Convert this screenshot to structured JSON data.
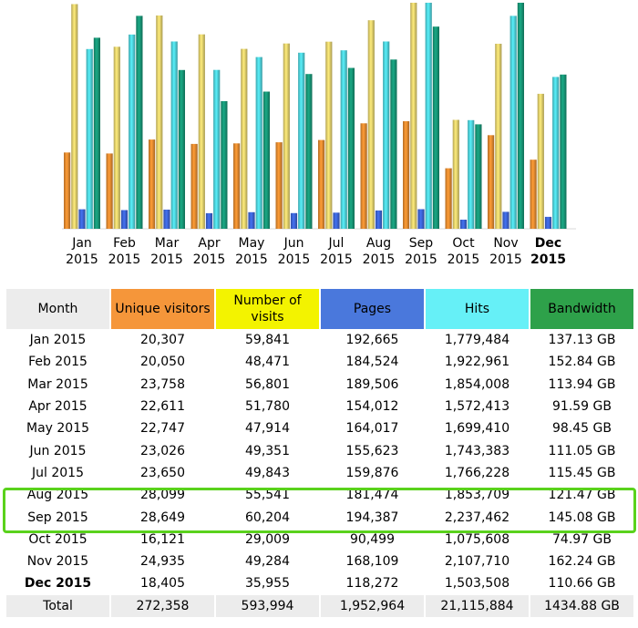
{
  "chart_data": {
    "type": "bar",
    "categories": [
      "Jan 2015",
      "Feb 2015",
      "Mar 2015",
      "Apr 2015",
      "May 2015",
      "Jun 2015",
      "Jul 2015",
      "Aug 2015",
      "Sep 2015",
      "Oct 2015",
      "Nov 2015",
      "Dec 2015"
    ],
    "month_labels": [
      "Jan",
      "Feb",
      "Mar",
      "Apr",
      "May",
      "Jun",
      "Jul",
      "Aug",
      "Sep",
      "Oct",
      "Nov",
      "Dec"
    ],
    "year_labels": [
      "2015",
      "2015",
      "2015",
      "2015",
      "2015",
      "2015",
      "2015",
      "2015",
      "2015",
      "2015",
      "2015",
      "2015"
    ],
    "current_index": 11,
    "series": [
      {
        "name": "Unique visitors",
        "key": "visitors",
        "color": "#e88c30",
        "values": [
          20307,
          20050,
          23758,
          22611,
          22747,
          23026,
          23650,
          28099,
          28649,
          16121,
          24935,
          18405
        ]
      },
      {
        "name": "Number of visits",
        "key": "visits",
        "color": "#e8d46e",
        "values": [
          59841,
          48471,
          56801,
          51780,
          47914,
          49351,
          49843,
          55541,
          60204,
          29009,
          49284,
          35955
        ]
      },
      {
        "name": "Pages",
        "key": "pages",
        "color": "#3d66d8",
        "values": [
          192665,
          184524,
          189506,
          154012,
          164017,
          155623,
          159876,
          181474,
          194387,
          90499,
          168109,
          118272
        ]
      },
      {
        "name": "Hits",
        "key": "hits",
        "color": "#4fd6df",
        "values": [
          1779484,
          1922961,
          1854008,
          1572413,
          1699410,
          1743383,
          1766228,
          1853709,
          2237462,
          1075608,
          2107710,
          1503508
        ]
      },
      {
        "name": "Bandwidth",
        "key": "bandwidth",
        "unit": "GB",
        "color": "#179878",
        "values": [
          137.13,
          152.84,
          113.94,
          91.59,
          98.45,
          111.05,
          115.45,
          121.47,
          145.08,
          74.97,
          162.24,
          110.66
        ]
      }
    ]
  },
  "table": {
    "headers": {
      "month": "Month",
      "visitors": "Unique visitors",
      "visits": "Number of visits",
      "pages": "Pages",
      "hits": "Hits",
      "bandwidth": "Bandwidth"
    },
    "header_colors": {
      "month": "#ececec",
      "visitors": "#f5963a",
      "visits": "#f3f300",
      "pages": "#4a78dc",
      "hits": "#66f0f7",
      "bandwidth": "#2ea14a"
    },
    "rows": [
      {
        "month": "Jan 2015",
        "visitors": "20,307",
        "visits": "59,841",
        "pages": "192,665",
        "hits": "1,779,484",
        "bandwidth": "137.13 GB"
      },
      {
        "month": "Feb 2015",
        "visitors": "20,050",
        "visits": "48,471",
        "pages": "184,524",
        "hits": "1,922,961",
        "bandwidth": "152.84 GB"
      },
      {
        "month": "Mar 2015",
        "visitors": "23,758",
        "visits": "56,801",
        "pages": "189,506",
        "hits": "1,854,008",
        "bandwidth": "113.94 GB"
      },
      {
        "month": "Apr 2015",
        "visitors": "22,611",
        "visits": "51,780",
        "pages": "154,012",
        "hits": "1,572,413",
        "bandwidth": "91.59 GB"
      },
      {
        "month": "May 2015",
        "visitors": "22,747",
        "visits": "47,914",
        "pages": "164,017",
        "hits": "1,699,410",
        "bandwidth": "98.45 GB"
      },
      {
        "month": "Jun 2015",
        "visitors": "23,026",
        "visits": "49,351",
        "pages": "155,623",
        "hits": "1,743,383",
        "bandwidth": "111.05 GB"
      },
      {
        "month": "Jul 2015",
        "visitors": "23,650",
        "visits": "49,843",
        "pages": "159,876",
        "hits": "1,766,228",
        "bandwidth": "115.45 GB"
      },
      {
        "month": "Aug 2015",
        "visitors": "28,099",
        "visits": "55,541",
        "pages": "181,474",
        "hits": "1,853,709",
        "bandwidth": "121.47 GB"
      },
      {
        "month": "Sep 2015",
        "visitors": "28,649",
        "visits": "60,204",
        "pages": "194,387",
        "hits": "2,237,462",
        "bandwidth": "145.08 GB"
      },
      {
        "month": "Oct 2015",
        "visitors": "16,121",
        "visits": "29,009",
        "pages": "90,499",
        "hits": "1,075,608",
        "bandwidth": "74.97 GB"
      },
      {
        "month": "Nov 2015",
        "visitors": "24,935",
        "visits": "49,284",
        "pages": "168,109",
        "hits": "2,107,710",
        "bandwidth": "162.24 GB"
      },
      {
        "month": "Dec 2015",
        "visitors": "18,405",
        "visits": "35,955",
        "pages": "118,272",
        "hits": "1,503,508",
        "bandwidth": "110.66 GB"
      }
    ],
    "total": {
      "month": "Total",
      "visitors": "272,358",
      "visits": "593,994",
      "pages": "1,952,964",
      "hits": "21,115,884",
      "bandwidth": "1434.88 GB"
    },
    "highlight_color": "#5ad21c"
  }
}
